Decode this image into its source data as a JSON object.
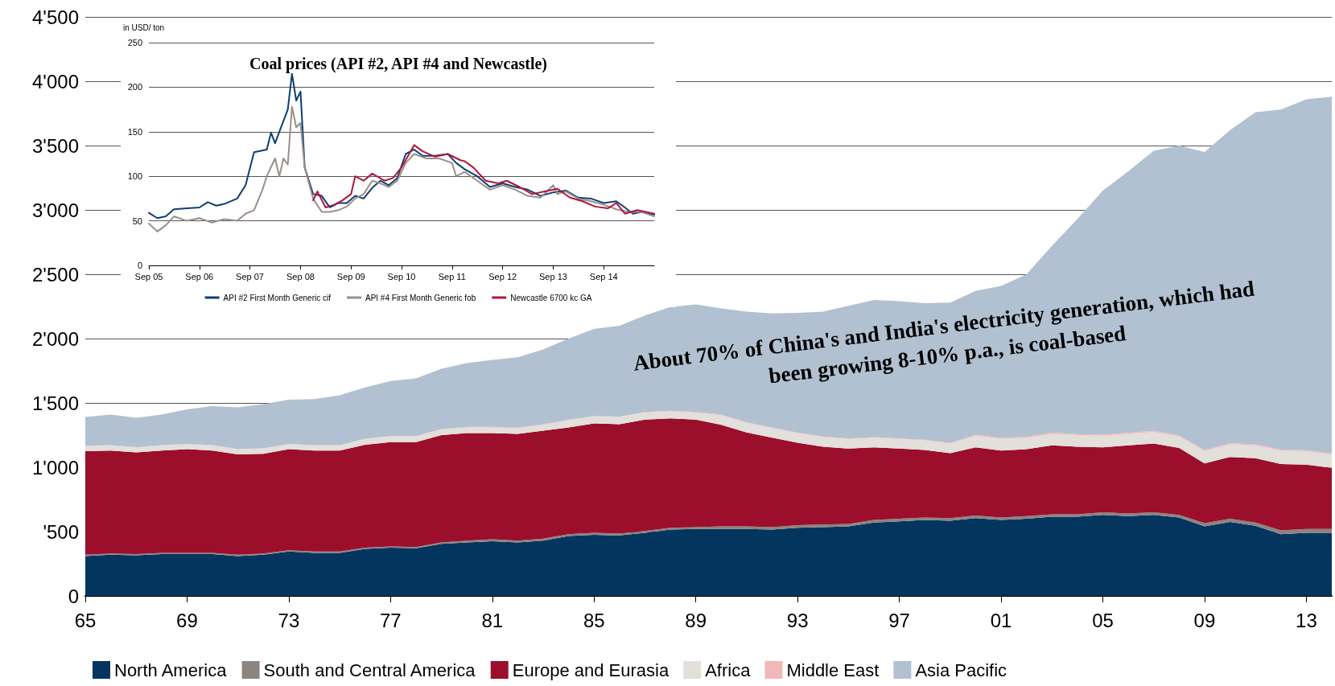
{
  "chart_data": [
    {
      "type": "area",
      "stacked": true,
      "categories": [
        "65",
        null,
        null,
        null,
        "69",
        null,
        null,
        null,
        "73",
        null,
        null,
        null,
        "77",
        null,
        null,
        null,
        "81",
        null,
        null,
        null,
        "85",
        null,
        null,
        null,
        "89",
        null,
        null,
        null,
        "93",
        null,
        null,
        null,
        "97",
        null,
        null,
        null,
        "01",
        null,
        null,
        null,
        "05",
        null,
        null,
        null,
        "09",
        null,
        null,
        null,
        "13",
        null
      ],
      "series": [
        {
          "name": "North America",
          "color": "#03355f",
          "values": [
            310,
            320,
            315,
            325,
            325,
            325,
            310,
            320,
            345,
            335,
            335,
            365,
            375,
            370,
            405,
            415,
            425,
            415,
            430,
            465,
            475,
            470,
            490,
            515,
            520,
            520,
            520,
            515,
            530,
            535,
            540,
            570,
            580,
            590,
            585,
            605,
            590,
            600,
            615,
            615,
            630,
            620,
            630,
            610,
            540,
            575,
            545,
            480,
            490,
            490
          ]
        },
        {
          "name": "South and Central America",
          "color": "#8c8480",
          "values": [
            10,
            10,
            10,
            10,
            10,
            10,
            10,
            10,
            10,
            10,
            10,
            10,
            10,
            10,
            10,
            15,
            15,
            15,
            15,
            15,
            15,
            15,
            15,
            15,
            15,
            20,
            20,
            20,
            20,
            20,
            20,
            20,
            20,
            20,
            20,
            20,
            20,
            20,
            20,
            20,
            20,
            20,
            20,
            20,
            25,
            25,
            25,
            30,
            30,
            30
          ]
        },
        {
          "name": "Europe and Eurasia",
          "color": "#9b0f2d",
          "values": [
            805,
            800,
            790,
            795,
            805,
            795,
            780,
            775,
            785,
            785,
            785,
            800,
            810,
            815,
            835,
            835,
            825,
            830,
            840,
            830,
            850,
            850,
            865,
            850,
            835,
            790,
            730,
            695,
            640,
            605,
            585,
            565,
            545,
            525,
            505,
            530,
            520,
            520,
            535,
            525,
            505,
            530,
            535,
            520,
            465,
            480,
            500,
            515,
            500,
            475
          ]
        },
        {
          "name": "Africa",
          "color": "#e3dfdb",
          "values": [
            40,
            40,
            40,
            40,
            40,
            40,
            40,
            40,
            40,
            40,
            40,
            45,
            45,
            45,
            45,
            45,
            45,
            45,
            45,
            55,
            55,
            55,
            55,
            55,
            55,
            75,
            75,
            75,
            75,
            75,
            75,
            75,
            75,
            75,
            75,
            90,
            90,
            90,
            90,
            90,
            90,
            90,
            90,
            90,
            95,
            100,
            100,
            105,
            105,
            105
          ]
        },
        {
          "name": "Middle East",
          "color": "#f0b8b8",
          "values": [
            2,
            2,
            2,
            2,
            2,
            2,
            2,
            2,
            2,
            2,
            2,
            2,
            2,
            2,
            2,
            4,
            4,
            4,
            4,
            4,
            4,
            4,
            4,
            4,
            4,
            4,
            4,
            4,
            4,
            4,
            4,
            4,
            4,
            4,
            4,
            8,
            8,
            8,
            8,
            8,
            8,
            8,
            8,
            8,
            8,
            8,
            8,
            8,
            8,
            8
          ]
        },
        {
          "name": "Asia Pacific",
          "color": "#b1c1d1",
          "values": [
            223,
            238,
            228,
            238,
            268,
            303,
            323,
            343,
            343,
            358,
            388,
            398,
            428,
            448,
            468,
            496,
            521,
            546,
            581,
            631,
            676,
            706,
            751,
            806,
            836,
            826,
            861,
            886,
            931,
            971,
            1031,
            1066,
            1066,
            1061,
            1091,
            1117,
            1182,
            1262,
            1452,
            1672,
            1897,
            2032,
            2177,
            2252,
            2317,
            2432,
            2582,
            2642,
            2727,
            2772
          ]
        }
      ],
      "ylim": [
        0,
        4500
      ],
      "yticks": [
        0,
        {
          "value": 500,
          "label": "'500"
        },
        {
          "value": 1000,
          "label": "1'000"
        },
        {
          "value": 1500,
          "label": "1'500"
        },
        {
          "value": 2000,
          "label": "2'000"
        },
        {
          "value": 2500,
          "label": "2'500"
        },
        {
          "value": 3000,
          "label": "3'000"
        },
        {
          "value": 3500,
          "label": "3'500"
        },
        {
          "value": 4000,
          "label": "4'000"
        },
        {
          "value": 4500,
          "label": "4'500"
        }
      ],
      "grid": "y",
      "legend": "bottom",
      "annotations": [
        "About 70% of China's and India's electricity generation, which had\nbeen growing 8-10% p.a., is coal-based"
      ]
    },
    {
      "type": "line",
      "title": "Coal prices (API #2, API #4 and Newcastle)",
      "ylabel": "in USD/ ton",
      "marker": "none",
      "grid": "y",
      "legend": "bottom",
      "xlim": [
        "2005-09",
        "2015-09"
      ],
      "xticks": [
        {
          "value": "2005-09",
          "label": "Sep 05"
        },
        {
          "value": "2006-09",
          "label": "Sep 06"
        },
        {
          "value": "2007-09",
          "label": "Sep 07"
        },
        {
          "value": "2008-09",
          "label": "Sep 08"
        },
        {
          "value": "2009-09",
          "label": "Sep 09"
        },
        {
          "value": "2010-09",
          "label": "Sep 10"
        },
        {
          "value": "2011-09",
          "label": "Sep 11"
        },
        {
          "value": "2012-09",
          "label": "Sep 12"
        },
        {
          "value": "2013-09",
          "label": "Sep 13"
        },
        {
          "value": "2014-09",
          "label": "Sep 14"
        }
      ],
      "ylim": [
        0,
        250
      ],
      "yticks": [
        0,
        50,
        100,
        150,
        200,
        250
      ],
      "series": [
        {
          "name": "API #2 First Month Generic cif",
          "color": "#0e3f73",
          "x": [
            "2005-09",
            "2005-11",
            "2006-01",
            "2006-03",
            "2006-06",
            "2006-09",
            "2006-11",
            "2007-01",
            "2007-03",
            "2007-06",
            "2007-08",
            "2007-10",
            "2008-01",
            "2008-02",
            "2008-03",
            "2008-04",
            "2008-06",
            "2008-07",
            "2008-08",
            "2008-09",
            "2008-10",
            "2008-12",
            "2009-02",
            "2009-04",
            "2009-06",
            "2009-08",
            "2009-10",
            "2009-12",
            "2010-02",
            "2010-04",
            "2010-06",
            "2010-08",
            "2010-10",
            "2010-12",
            "2011-02",
            "2011-05",
            "2011-08",
            "2011-10",
            "2011-12",
            "2012-03",
            "2012-06",
            "2012-09",
            "2012-12",
            "2013-03",
            "2013-06",
            "2013-09",
            "2013-12",
            "2014-03",
            "2014-06",
            "2014-09",
            "2014-12",
            "2015-02",
            "2015-04",
            "2015-06",
            "2015-09"
          ],
          "values": [
            59,
            53,
            55,
            63,
            64,
            65,
            71,
            67,
            69,
            75,
            90,
            127,
            130,
            149,
            137,
            150,
            175,
            215,
            185,
            195,
            110,
            80,
            78,
            65,
            70,
            70,
            78,
            75,
            87,
            95,
            90,
            98,
            125,
            130,
            123,
            123,
            125,
            115,
            108,
            100,
            88,
            92,
            88,
            85,
            78,
            82,
            84,
            76,
            75,
            70,
            72,
            65,
            58,
            60,
            57
          ]
        },
        {
          "name": "API #4 First Month Generic fob",
          "color": "#9b8f87",
          "x": [
            "2005-09",
            "2005-11",
            "2006-01",
            "2006-03",
            "2006-06",
            "2006-09",
            "2006-12",
            "2007-03",
            "2007-06",
            "2007-08",
            "2007-10",
            "2007-12",
            "2008-01",
            "2008-03",
            "2008-04",
            "2008-05",
            "2008-06",
            "2008-07",
            "2008-08",
            "2008-09",
            "2008-10",
            "2008-12",
            "2009-02",
            "2009-04",
            "2009-06",
            "2009-08",
            "2009-10",
            "2009-12",
            "2010-02",
            "2010-04",
            "2010-06",
            "2010-08",
            "2010-10",
            "2010-12",
            "2011-03",
            "2011-06",
            "2011-09",
            "2011-10",
            "2011-12",
            "2012-03",
            "2012-06",
            "2012-09",
            "2012-12",
            "2013-03",
            "2013-06",
            "2013-09",
            "2013-10",
            "2013-12",
            "2014-03",
            "2014-06",
            "2014-09",
            "2014-12",
            "2015-03",
            "2015-06",
            "2015-09"
          ],
          "values": [
            47,
            38,
            45,
            55,
            50,
            53,
            48,
            52,
            50,
            58,
            62,
            85,
            100,
            120,
            100,
            120,
            113,
            178,
            155,
            160,
            110,
            75,
            60,
            60,
            62,
            66,
            75,
            80,
            95,
            92,
            88,
            95,
            115,
            125,
            120,
            120,
            115,
            100,
            105,
            95,
            85,
            90,
            85,
            78,
            76,
            90,
            80,
            83,
            75,
            72,
            68,
            63,
            60,
            60,
            55
          ]
        },
        {
          "name": "Newcastle 6700 kc GA",
          "color": "#b0163a",
          "x": [
            "2008-12",
            "2009-01",
            "2009-03",
            "2009-05",
            "2009-07",
            "2009-09",
            "2009-10",
            "2009-12",
            "2010-02",
            "2010-05",
            "2010-07",
            "2010-09",
            "2010-12",
            "2011-02",
            "2011-05",
            "2011-08",
            "2011-11",
            "2011-12",
            "2012-02",
            "2012-05",
            "2012-08",
            "2012-10",
            "2013-01",
            "2013-04",
            "2013-07",
            "2013-10",
            "2014-01",
            "2014-04",
            "2014-07",
            "2014-10",
            "2014-12",
            "2015-02",
            "2015-05",
            "2015-09"
          ],
          "values": [
            73,
            83,
            65,
            68,
            73,
            80,
            100,
            95,
            103,
            95,
            98,
            110,
            135,
            128,
            122,
            125,
            118,
            117,
            110,
            95,
            92,
            95,
            88,
            80,
            83,
            86,
            76,
            72,
            66,
            64,
            70,
            58,
            62,
            58
          ]
        }
      ]
    }
  ]
}
